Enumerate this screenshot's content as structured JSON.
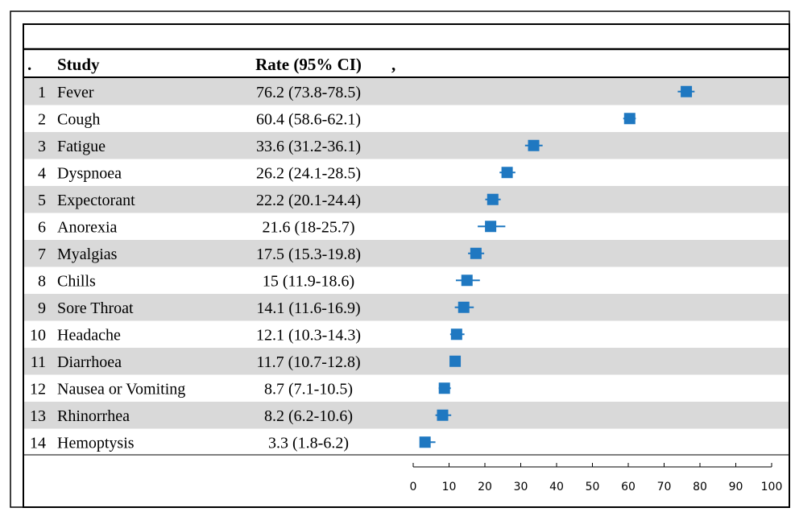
{
  "colors": {
    "stripe": "#d9d9d9",
    "marker": "#1f78c1",
    "border": "#000000"
  },
  "table_header": {
    "index_label": ".",
    "study_label": "Study",
    "rate_label": "Rate (95% CI)",
    "plot_label": ","
  },
  "chart_data": {
    "type": "forest",
    "xlim": [
      0,
      100
    ],
    "x_ticks": [
      0,
      10,
      20,
      30,
      40,
      50,
      60,
      70,
      80,
      90,
      100
    ],
    "rows": [
      {
        "index": "1",
        "study": "Fever",
        "rate_text": "76.2 (73.8-78.5)",
        "rate": 76.2,
        "lo": 73.8,
        "hi": 78.5
      },
      {
        "index": "2",
        "study": "Cough",
        "rate_text": "60.4 (58.6-62.1)",
        "rate": 60.4,
        "lo": 58.6,
        "hi": 62.1
      },
      {
        "index": "3",
        "study": "Fatigue",
        "rate_text": "33.6 (31.2-36.1)",
        "rate": 33.6,
        "lo": 31.2,
        "hi": 36.1
      },
      {
        "index": "4",
        "study": "Dyspnoea",
        "rate_text": "26.2 (24.1-28.5)",
        "rate": 26.2,
        "lo": 24.1,
        "hi": 28.5
      },
      {
        "index": "5",
        "study": "Expectorant",
        "rate_text": "22.2 (20.1-24.4)",
        "rate": 22.2,
        "lo": 20.1,
        "hi": 24.4
      },
      {
        "index": "6",
        "study": "Anorexia",
        "rate_text": "21.6 (18-25.7)",
        "rate": 21.6,
        "lo": 18.0,
        "hi": 25.7
      },
      {
        "index": "7",
        "study": "Myalgias",
        "rate_text": "17.5 (15.3-19.8)",
        "rate": 17.5,
        "lo": 15.3,
        "hi": 19.8
      },
      {
        "index": "8",
        "study": "Chills",
        "rate_text": "15 (11.9-18.6)",
        "rate": 15.0,
        "lo": 11.9,
        "hi": 18.6
      },
      {
        "index": "9",
        "study": "Sore Throat",
        "rate_text": "14.1 (11.6-16.9)",
        "rate": 14.1,
        "lo": 11.6,
        "hi": 16.9
      },
      {
        "index": "10",
        "study": "Headache",
        "rate_text": "12.1 (10.3-14.3)",
        "rate": 12.1,
        "lo": 10.3,
        "hi": 14.3
      },
      {
        "index": "11",
        "study": "Diarrhoea",
        "rate_text": "11.7 (10.7-12.8)",
        "rate": 11.7,
        "lo": 10.7,
        "hi": 12.8
      },
      {
        "index": "12",
        "study": "Nausea or Vomiting",
        "rate_text": "8.7 (7.1-10.5)",
        "rate": 8.7,
        "lo": 7.1,
        "hi": 10.5
      },
      {
        "index": "13",
        "study": "Rhinorrhea",
        "rate_text": "8.2 (6.2-10.6)",
        "rate": 8.2,
        "lo": 6.2,
        "hi": 10.6
      },
      {
        "index": "14",
        "study": "Hemoptysis",
        "rate_text": "3.3 (1.8-6.2)",
        "rate": 3.3,
        "lo": 1.8,
        "hi": 6.2
      }
    ]
  }
}
